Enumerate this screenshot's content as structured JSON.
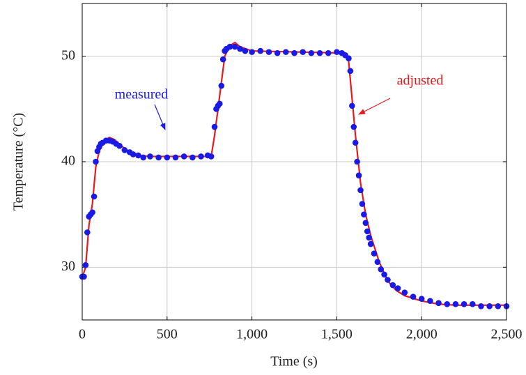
{
  "chart_data": {
    "type": "scatter",
    "xlabel": "Time (s)",
    "ylabel": "Temperature (°C)",
    "xlim": [
      0,
      2500
    ],
    "ylim": [
      25,
      55
    ],
    "xticks": [
      0,
      500,
      {
        "value": 1000,
        "label": "1,000"
      },
      {
        "value": 1500,
        "label": "1,500"
      },
      {
        "value": 2000,
        "label": "2,000"
      },
      {
        "value": 2500,
        "label": "2,500"
      }
    ],
    "yticks": [
      30,
      40,
      50
    ],
    "grid": true,
    "series": [
      {
        "name": "adjusted",
        "type": "line",
        "color": "#e8191d",
        "x": [
          0,
          20,
          40,
          60,
          80,
          100,
          130,
          160,
          190,
          230,
          280,
          330,
          400,
          760,
          780,
          800,
          820,
          840,
          870,
          900,
          930,
          1000,
          1550,
          1570,
          1590,
          1610,
          1640,
          1670,
          1700,
          1750,
          1800,
          1850,
          1900,
          2000,
          2100,
          2200,
          2300,
          2400,
          2500
        ],
        "values": [
          29,
          30,
          34,
          36,
          39.5,
          41,
          42,
          42.3,
          42.1,
          41.5,
          40.9,
          40.6,
          40.5,
          40.5,
          42.5,
          45,
          47.5,
          50,
          51,
          51.3,
          50.9,
          50.5,
          50.3,
          49.5,
          46,
          42.5,
          38,
          35,
          33,
          30.5,
          28.7,
          27.8,
          27.3,
          26.8,
          26.5,
          26.4,
          26.4,
          26.4,
          26.4
        ]
      },
      {
        "name": "measured",
        "type": "scatter",
        "color": "#1a1ae6",
        "x": [
          0,
          10,
          20,
          30,
          40,
          50,
          60,
          70,
          80,
          90,
          100,
          110,
          120,
          140,
          160,
          180,
          200,
          220,
          250,
          280,
          300,
          330,
          360,
          400,
          450,
          500,
          550,
          600,
          650,
          700,
          740,
          760,
          780,
          790,
          800,
          810,
          820,
          830,
          840,
          850,
          870,
          900,
          930,
          960,
          1000,
          1050,
          1100,
          1150,
          1200,
          1250,
          1300,
          1350,
          1400,
          1450,
          1500,
          1530,
          1550,
          1570,
          1580,
          1590,
          1600,
          1610,
          1620,
          1630,
          1640,
          1650,
          1660,
          1670,
          1680,
          1690,
          1700,
          1720,
          1740,
          1760,
          1780,
          1800,
          1830,
          1860,
          1900,
          1950,
          2000,
          2050,
          2100,
          2150,
          2200,
          2250,
          2300,
          2350,
          2400,
          2450,
          2500
        ],
        "values": [
          29.1,
          29.1,
          30.2,
          33.3,
          34.8,
          35.0,
          35.2,
          36.7,
          40.0,
          41.0,
          41.4,
          41.7,
          41.8,
          42.0,
          42.0,
          41.9,
          41.7,
          41.5,
          41.1,
          40.9,
          40.7,
          40.6,
          40.4,
          40.5,
          40.4,
          40.4,
          40.4,
          40.5,
          40.4,
          40.5,
          40.6,
          40.5,
          43.3,
          45.0,
          45.3,
          45.5,
          47.2,
          49.7,
          50.5,
          50.7,
          50.9,
          50.9,
          50.7,
          50.5,
          50.4,
          50.5,
          50.4,
          50.3,
          50.4,
          50.3,
          50.4,
          50.3,
          50.3,
          50.3,
          50.4,
          50.3,
          50.1,
          49.8,
          48.6,
          45.3,
          43.3,
          41.8,
          40.0,
          38.7,
          37.3,
          36.0,
          35.0,
          34.2,
          33.4,
          32.8,
          32.2,
          31.3,
          30.5,
          29.8,
          29.3,
          28.8,
          28.3,
          28.0,
          27.6,
          27.2,
          27.0,
          26.8,
          26.6,
          26.5,
          26.5,
          26.5,
          26.5,
          26.3,
          26.3,
          26.3,
          26.3
        ]
      }
    ],
    "annotations": [
      {
        "text": "measured",
        "series": 1
      },
      {
        "text": "adjusted",
        "series": 0
      }
    ]
  }
}
